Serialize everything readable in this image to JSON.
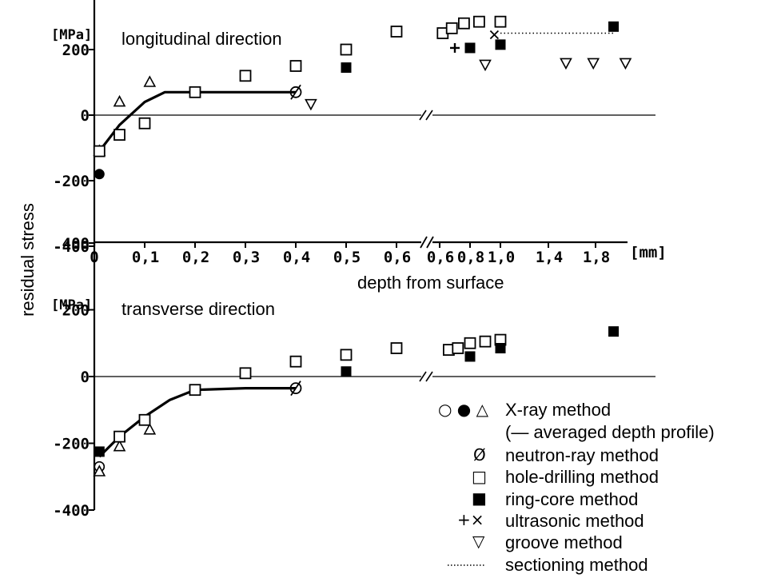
{
  "chart_data": [
    {
      "type": "scatter",
      "title": "longitudinal direction",
      "ylabel": "residual stress",
      "yunit": "[MPa]",
      "ylim": [
        -400,
        400
      ],
      "yticks": [
        "400",
        "200",
        "0",
        "-200",
        "-400"
      ],
      "xlabel": "depth from surface",
      "xunit": "[mm]",
      "xticks": [
        "0",
        "0,1",
        "0,2",
        "0,3",
        "0,4",
        "0,5",
        "0,6",
        "0,6",
        "0,8",
        "1,0",
        "1,4",
        "1,8"
      ],
      "x_break": true,
      "series": [
        {
          "name": "X-ray method",
          "marker": "circle-open",
          "points": []
        },
        {
          "name": "X-ray method",
          "marker": "circle-filled",
          "points": [
            [
              0.01,
              -180
            ]
          ]
        },
        {
          "name": "X-ray method",
          "marker": "triangle",
          "points": [
            [
              0.01,
              -110
            ],
            [
              0.05,
              40
            ],
            [
              0.11,
              100
            ]
          ]
        },
        {
          "name": "averaged depth profile",
          "marker": "line",
          "points": [
            [
              0.01,
              -110
            ],
            [
              0.05,
              -30
            ],
            [
              0.1,
              40
            ],
            [
              0.14,
              70
            ],
            [
              0.2,
              70
            ],
            [
              0.3,
              70
            ],
            [
              0.4,
              70
            ]
          ]
        },
        {
          "name": "neutron-ray method",
          "marker": "slashed-circle",
          "points": [
            [
              0.4,
              70
            ]
          ]
        },
        {
          "name": "hole-drilling method",
          "marker": "square-open",
          "points": [
            [
              0.01,
              -110
            ],
            [
              0.05,
              -60
            ],
            [
              0.1,
              -25
            ],
            [
              0.2,
              70
            ],
            [
              0.3,
              120
            ],
            [
              0.4,
              150
            ],
            [
              0.5,
              200
            ],
            [
              0.6,
              255
            ],
            [
              0.62,
              250
            ],
            [
              0.68,
              265
            ],
            [
              0.76,
              280
            ],
            [
              0.86,
              285
            ],
            [
              1.0,
              285
            ]
          ]
        },
        {
          "name": "ring-core method",
          "marker": "square-filled",
          "points": [
            [
              0.5,
              145
            ],
            [
              0.8,
              205
            ],
            [
              1.0,
              215
            ],
            [
              1.95,
              270
            ]
          ]
        },
        {
          "name": "ultrasonic method",
          "marker": "plus",
          "points": [
            [
              0.7,
              205
            ]
          ]
        },
        {
          "name": "ultrasonic method",
          "marker": "cross",
          "points": [
            [
              0.96,
              245
            ]
          ]
        },
        {
          "name": "groove method",
          "marker": "triangle-down",
          "points": [
            [
              0.43,
              35
            ],
            [
              0.9,
              155
            ],
            [
              1.55,
              160
            ],
            [
              1.78,
              160
            ],
            [
              2.05,
              160
            ]
          ]
        },
        {
          "name": "sectioning method",
          "marker": "dotted-line",
          "points": [
            [
              1.0,
              250
            ],
            [
              1.95,
              250
            ]
          ]
        }
      ]
    },
    {
      "type": "scatter",
      "title": "transverse direction",
      "ylabel": "residual stress",
      "yunit": "[MPa]",
      "ylim": [
        -400,
        400
      ],
      "yticks": [
        "400",
        "200",
        "0",
        "-200",
        "-400"
      ],
      "x_break": true,
      "series": [
        {
          "name": "X-ray method",
          "marker": "circle-open",
          "points": [
            [
              0.01,
              -270
            ]
          ]
        },
        {
          "name": "X-ray method",
          "marker": "circle-filled",
          "points": []
        },
        {
          "name": "X-ray method",
          "marker": "triangle",
          "points": [
            [
              0.01,
              -285
            ],
            [
              0.05,
              -210
            ],
            [
              0.11,
              -160
            ]
          ]
        },
        {
          "name": "averaged depth profile",
          "marker": "line",
          "points": [
            [
              0.01,
              -240
            ],
            [
              0.05,
              -180
            ],
            [
              0.1,
              -120
            ],
            [
              0.15,
              -70
            ],
            [
              0.2,
              -40
            ],
            [
              0.3,
              -35
            ],
            [
              0.4,
              -35
            ]
          ]
        },
        {
          "name": "neutron-ray method",
          "marker": "slashed-circle",
          "points": [
            [
              0.4,
              -35
            ]
          ]
        },
        {
          "name": "hole-drilling method",
          "marker": "square-open",
          "points": [
            [
              0.05,
              -180
            ],
            [
              0.1,
              -130
            ],
            [
              0.2,
              -40
            ],
            [
              0.3,
              10
            ],
            [
              0.4,
              45
            ],
            [
              0.5,
              65
            ],
            [
              0.6,
              85
            ],
            [
              0.66,
              80
            ],
            [
              0.72,
              85
            ],
            [
              0.8,
              100
            ],
            [
              0.9,
              105
            ],
            [
              1.0,
              110
            ]
          ]
        },
        {
          "name": "ring-core method",
          "marker": "square-filled",
          "points": [
            [
              0.01,
              -225
            ],
            [
              0.5,
              15
            ],
            [
              0.8,
              60
            ],
            [
              1.0,
              85
            ],
            [
              1.95,
              135
            ]
          ]
        },
        {
          "name": "groove method",
          "marker": "triangle-down",
          "points": []
        }
      ]
    }
  ],
  "legend": [
    {
      "symbols": "○ ● △",
      "label": "X-ray method"
    },
    {
      "symbols": "",
      "label": "(— averaged depth profile)"
    },
    {
      "symbols": "Ø",
      "label": "neutron-ray method"
    },
    {
      "symbols": "□",
      "label": "hole-drilling method"
    },
    {
      "symbols": "■",
      "label": "ring-core method"
    },
    {
      "symbols": "+×",
      "label": "ultrasonic method"
    },
    {
      "symbols": "▽",
      "label": "groove method"
    },
    {
      "symbols": "",
      "label": "sectioning method"
    }
  ]
}
